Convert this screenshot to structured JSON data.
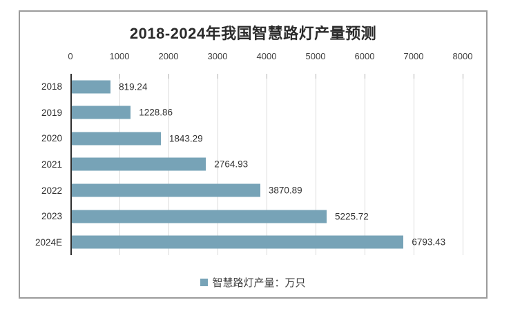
{
  "title": "2018-2024年我国智慧路灯产量预测",
  "legend": {
    "swatch_color": "#77A3B7",
    "label": "智慧路灯产量：万只"
  },
  "chart_data": {
    "type": "bar",
    "orientation": "horizontal",
    "title": "2018-2024年我国智慧路灯产量预测",
    "categories": [
      "2018",
      "2019",
      "2020",
      "2021",
      "2022",
      "2023",
      "2024E"
    ],
    "series": [
      {
        "name": "智慧路灯产量：万只",
        "values": [
          819.24,
          1228.86,
          1843.29,
          2764.93,
          3870.89,
          5225.72,
          6793.43
        ]
      }
    ],
    "value_labels": [
      "819.24",
      "1228.86",
      "1843.29",
      "2764.93",
      "3870.89",
      "5225.72",
      "6793.43"
    ],
    "xlim": [
      0,
      8000
    ],
    "x_ticks": [
      0,
      1000,
      2000,
      3000,
      4000,
      5000,
      6000,
      7000,
      8000
    ],
    "grid": true,
    "legend_position": "bottom",
    "bar_color": "#77A3B7",
    "gridline_color": "#dadada",
    "axis_line_color": "#2e2e2e"
  }
}
